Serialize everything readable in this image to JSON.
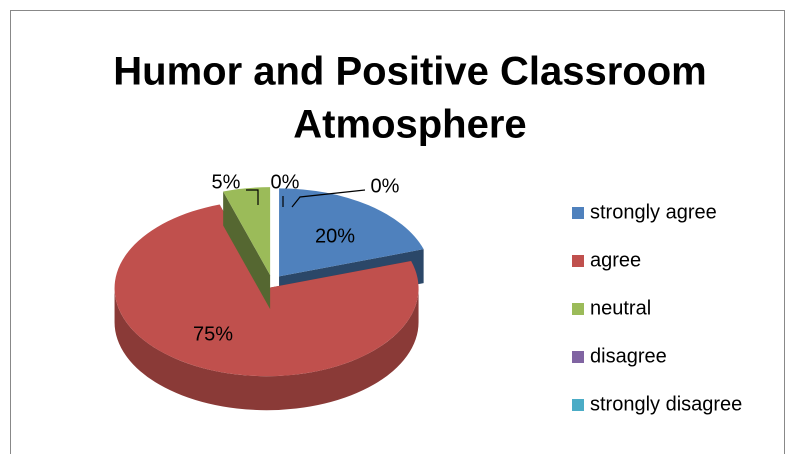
{
  "chart_data": {
    "type": "pie3d",
    "title": [
      "Humor and Positive Classroom",
      "Atmosphere"
    ],
    "categories": [
      "strongly agree",
      "agree",
      "neutral",
      "disagree",
      "strongly disagree"
    ],
    "values": [
      20,
      75,
      5,
      0,
      0
    ],
    "value_labels": [
      "20%",
      "75%",
      "5%",
      "0%",
      "0%"
    ],
    "colors": [
      "#4f81bd",
      "#c0504d",
      "#9bbb59",
      "#8064a2",
      "#4bacc6"
    ],
    "legend": "right"
  }
}
